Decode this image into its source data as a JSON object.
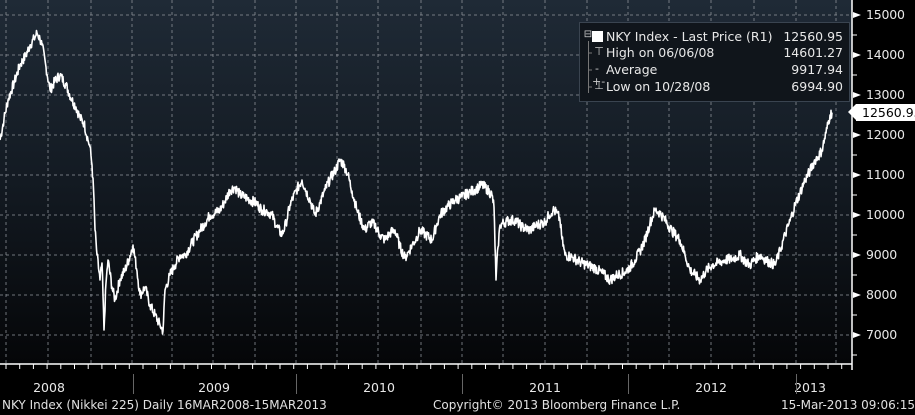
{
  "chart_data": {
    "type": "line",
    "title": "NKY Index - Last Price (R1)",
    "ticker": "NKY Index (Nikkei 225)",
    "frequency": "Daily",
    "date_range": "16MAR2008-15MAR2013",
    "xlabel": "",
    "ylabel": "",
    "ylim": [
      6500,
      15300
    ],
    "yaxis_position": "right",
    "y_ticks": [
      15000,
      14000,
      13000,
      12000,
      11000,
      10000,
      9000,
      8000,
      7000
    ],
    "x_ticks": [
      "2008",
      "2009",
      "2010",
      "2011",
      "2012",
      "2013"
    ],
    "grid": true,
    "legend_position": "top-right",
    "series": [
      {
        "name": "NKY Index - Last Price",
        "color": "#ffffff",
        "points": [
          [
            0,
            11875
          ],
          [
            4,
            12400
          ],
          [
            8,
            12875
          ],
          [
            14,
            13300
          ],
          [
            20,
            13750
          ],
          [
            26,
            14000
          ],
          [
            30,
            14250
          ],
          [
            34,
            14400
          ],
          [
            37,
            14550
          ],
          [
            40,
            14400
          ],
          [
            42,
            14250
          ],
          [
            46,
            13700
          ],
          [
            50,
            13125
          ],
          [
            55,
            13350
          ],
          [
            60,
            13500
          ],
          [
            66,
            13250
          ],
          [
            72,
            12875
          ],
          [
            76,
            12700
          ],
          [
            80,
            12425
          ],
          [
            84,
            12300
          ],
          [
            88,
            11875
          ],
          [
            90,
            11700
          ],
          [
            92,
            11250
          ],
          [
            94,
            10400
          ],
          [
            95,
            9625
          ],
          [
            97,
            9000
          ],
          [
            100,
            8375
          ],
          [
            102,
            8800
          ],
          [
            104,
            7125
          ],
          [
            106,
            8300
          ],
          [
            108,
            8875
          ],
          [
            112,
            8200
          ],
          [
            115,
            7875
          ],
          [
            120,
            8400
          ],
          [
            125,
            8625
          ],
          [
            129,
            8900
          ],
          [
            133,
            9250
          ],
          [
            137,
            8600
          ],
          [
            140,
            8000
          ],
          [
            145,
            8200
          ],
          [
            150,
            7750
          ],
          [
            155,
            7500
          ],
          [
            160,
            7250
          ],
          [
            163,
            7100
          ],
          [
            165,
            8125
          ],
          [
            170,
            8500
          ],
          [
            175,
            8750
          ],
          [
            180,
            9000
          ],
          [
            185,
            9000
          ],
          [
            192,
            9300
          ],
          [
            200,
            9625
          ],
          [
            205,
            9800
          ],
          [
            210,
            10000
          ],
          [
            215,
            10050
          ],
          [
            220,
            10125
          ],
          [
            225,
            10350
          ],
          [
            230,
            10625
          ],
          [
            235,
            10700
          ],
          [
            240,
            10500
          ],
          [
            245,
            10450
          ],
          [
            250,
            10375
          ],
          [
            256,
            10300
          ],
          [
            262,
            10125
          ],
          [
            267,
            10100
          ],
          [
            272,
            10000
          ],
          [
            277,
            9700
          ],
          [
            282,
            9500
          ],
          [
            286,
            9800
          ],
          [
            290,
            10250
          ],
          [
            296,
            10600
          ],
          [
            302,
            10875
          ],
          [
            306,
            10600
          ],
          [
            310,
            10375
          ],
          [
            313,
            10150
          ],
          [
            315,
            10000
          ],
          [
            320,
            10300
          ],
          [
            325,
            10625
          ],
          [
            330,
            10900
          ],
          [
            335,
            11100
          ],
          [
            340,
            11375
          ],
          [
            344,
            11250
          ],
          [
            348,
            11000
          ],
          [
            352,
            10600
          ],
          [
            357,
            10125
          ],
          [
            361,
            9850
          ],
          [
            365,
            9625
          ],
          [
            370,
            9800
          ],
          [
            375,
            9750
          ],
          [
            380,
            9500
          ],
          [
            385,
            9375
          ],
          [
            390,
            9550
          ],
          [
            395,
            9625
          ],
          [
            400,
            9200
          ],
          [
            405,
            8925
          ],
          [
            409,
            9100
          ],
          [
            412,
            9250
          ],
          [
            416,
            9400
          ],
          [
            420,
            9625
          ],
          [
            426,
            9500
          ],
          [
            432,
            9375
          ],
          [
            436,
            9700
          ],
          [
            440,
            10000
          ],
          [
            447,
            10200
          ],
          [
            455,
            10375
          ],
          [
            462,
            10450
          ],
          [
            470,
            10575
          ],
          [
            476,
            10650
          ],
          [
            482,
            10750
          ],
          [
            487,
            10650
          ],
          [
            492,
            10500
          ],
          [
            494,
            10200
          ],
          [
            496,
            8375
          ],
          [
            498,
            9200
          ],
          [
            500,
            9750
          ],
          [
            507,
            9850
          ],
          [
            515,
            9875
          ],
          [
            522,
            9700
          ],
          [
            530,
            9625
          ],
          [
            537,
            9750
          ],
          [
            545,
            9825
          ],
          [
            549,
            10000
          ],
          [
            553,
            10125
          ],
          [
            557,
            10050
          ],
          [
            560,
            9875
          ],
          [
            562,
            9400
          ],
          [
            565,
            9000
          ],
          [
            572,
            8950
          ],
          [
            580,
            8825
          ],
          [
            587,
            8750
          ],
          [
            595,
            8675
          ],
          [
            602,
            8550
          ],
          [
            610,
            8375
          ],
          [
            617,
            8500
          ],
          [
            625,
            8575
          ],
          [
            630,
            8700
          ],
          [
            635,
            8875
          ],
          [
            640,
            9100
          ],
          [
            645,
            9375
          ],
          [
            650,
            9800
          ],
          [
            655,
            10125
          ],
          [
            660,
            10050
          ],
          [
            665,
            9875
          ],
          [
            672,
            9600
          ],
          [
            680,
            9375
          ],
          [
            685,
            9000
          ],
          [
            690,
            8625
          ],
          [
            695,
            8500
          ],
          [
            700,
            8375
          ],
          [
            706,
            8600
          ],
          [
            712,
            8750
          ],
          [
            718,
            8800
          ],
          [
            725,
            8875
          ],
          [
            732,
            8900
          ],
          [
            740,
            9000
          ],
          [
            745,
            8850
          ],
          [
            750,
            8750
          ],
          [
            755,
            8900
          ],
          [
            760,
            9000
          ],
          [
            767,
            8850
          ],
          [
            775,
            8750
          ],
          [
            780,
            9100
          ],
          [
            785,
            9500
          ],
          [
            790,
            9850
          ],
          [
            795,
            10250
          ],
          [
            800,
            10550
          ],
          [
            805,
            10875
          ],
          [
            810,
            11100
          ],
          [
            815,
            11375
          ],
          [
            818,
            11450
          ],
          [
            822,
            11625
          ],
          [
            826,
            12050
          ],
          [
            830,
            12500
          ],
          [
            832,
            12560.95
          ]
        ]
      }
    ],
    "reference_lines": {
      "high": {
        "label": "High on 06/06/08",
        "value": 14601.27
      },
      "average": {
        "label": "Average",
        "value": 9917.94
      },
      "low": {
        "label": "Low on 10/28/08",
        "value": 6994.9
      }
    },
    "last_price": 12560.95
  },
  "legend": {
    "rows": [
      {
        "icon": "square",
        "label": "NKY Index - Last Price (R1)",
        "value": "12560.95"
      },
      {
        "icon": "T",
        "label": "High on 06/06/08",
        "value": "14601.27"
      },
      {
        "icon": "-+-",
        "label": "Average",
        "value": "9917.94"
      },
      {
        "icon": "⊥",
        "label": "Low on 10/28/08",
        "value": "6994.90"
      }
    ]
  },
  "yaxis": {
    "labels": [
      "15000",
      "14000",
      "13000",
      "12000",
      "11000",
      "10000",
      "9000",
      "8000",
      "7000"
    ],
    "last_tag": "12560.95"
  },
  "xaxis": {
    "years": [
      "2008",
      "2009",
      "2010",
      "2011",
      "2012",
      "2013"
    ]
  },
  "footer": {
    "left": "NKY Index (Nikkei 225)  Daily 16MAR2008-15MAR2013",
    "center": "Copyright© 2013 Bloomberg Finance L.P.",
    "right": "15-Mar-2013 09:06:15"
  },
  "colors": {
    "line": "#ffffff",
    "grid": "#8a8f96",
    "background_top": "#1f2a36",
    "background_bottom": "#050608"
  }
}
